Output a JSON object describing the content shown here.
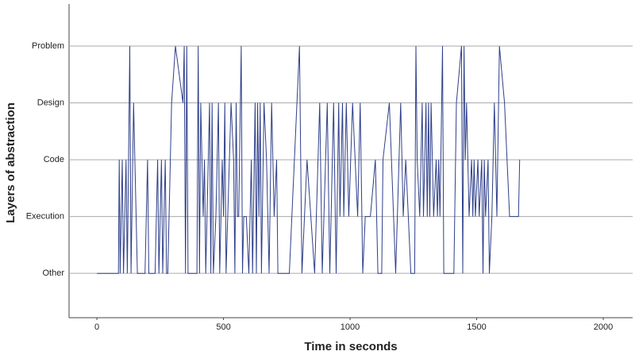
{
  "chart_data": {
    "type": "line",
    "xlabel": "Time in seconds",
    "ylabel": "Layers of abstraction",
    "color": "#2e3f8a",
    "x": [
      0,
      85,
      88,
      92,
      100,
      105,
      115,
      120,
      130,
      135,
      145,
      160,
      190,
      200,
      205,
      230,
      240,
      245,
      255,
      260,
      270,
      275,
      280,
      295,
      310,
      340,
      345,
      350,
      355,
      360,
      395,
      400,
      405,
      410,
      420,
      425,
      430,
      445,
      450,
      455,
      460,
      470,
      480,
      485,
      495,
      500,
      505,
      510,
      530,
      540,
      545,
      550,
      555,
      560,
      570,
      575,
      580,
      590,
      600,
      610,
      615,
      625,
      630,
      635,
      640,
      645,
      650,
      660,
      670,
      680,
      690,
      700,
      710,
      715,
      760,
      790,
      800,
      810,
      830,
      860,
      880,
      890,
      910,
      920,
      935,
      945,
      955,
      960,
      970,
      975,
      985,
      995,
      1010,
      1020,
      1030,
      1040,
      1050,
      1060,
      1080,
      1100,
      1110,
      1125,
      1130,
      1155,
      1180,
      1200,
      1210,
      1220,
      1240,
      1255,
      1260,
      1265,
      1275,
      1285,
      1290,
      1300,
      1305,
      1310,
      1315,
      1320,
      1330,
      1340,
      1345,
      1350,
      1355,
      1365,
      1370,
      1410,
      1420,
      1440,
      1445,
      1450,
      1455,
      1460,
      1470,
      1480,
      1485,
      1490,
      1495,
      1505,
      1510,
      1520,
      1525,
      1530,
      1535,
      1545,
      1550,
      1560,
      1570,
      1580,
      1590,
      1610,
      1630,
      1665,
      1670
    ],
    "values": [
      0,
      0,
      2,
      0,
      2,
      0,
      2,
      0,
      4,
      0,
      3,
      0,
      0,
      2,
      0,
      0,
      2,
      0,
      2,
      0,
      2,
      0,
      0,
      3,
      4,
      3,
      4,
      0,
      4,
      0,
      0,
      4,
      0,
      3,
      1,
      2,
      0,
      3,
      0,
      3,
      0,
      1,
      3,
      0,
      2,
      1,
      3,
      0,
      3,
      2,
      0,
      3,
      1,
      1,
      4,
      0,
      1,
      1,
      0,
      2,
      0,
      3,
      0,
      3,
      1,
      3,
      0,
      3,
      2,
      0,
      3,
      1,
      2,
      0,
      0,
      3,
      4,
      0,
      2,
      0,
      3,
      0,
      3,
      0,
      3,
      0,
      3,
      1,
      3,
      1,
      3,
      1,
      3,
      2,
      1,
      3,
      0,
      1,
      1,
      2,
      0,
      0,
      2,
      3,
      0,
      3,
      1,
      2,
      0,
      0,
      4,
      2,
      1,
      3,
      1,
      3,
      1,
      3,
      1,
      3,
      1,
      2,
      1,
      2,
      1,
      4,
      0,
      0,
      3,
      4,
      0,
      4,
      2,
      3,
      1,
      2,
      1,
      2,
      1,
      2,
      1,
      2,
      0,
      2,
      1,
      2,
      0,
      1,
      3,
      1,
      4,
      3,
      1,
      1,
      2
    ],
    "xlim": [
      -110,
      2116
    ],
    "xticks": [
      0,
      500,
      1000,
      1500,
      2000
    ],
    "ylim": [
      -0.78,
      4.74
    ],
    "yticks": [
      {
        "value": 0,
        "label": "Other"
      },
      {
        "value": 1,
        "label": "Execution"
      },
      {
        "value": 2,
        "label": "Code"
      },
      {
        "value": 3,
        "label": "Design"
      },
      {
        "value": 4,
        "label": "Problem"
      }
    ],
    "grid": true
  }
}
